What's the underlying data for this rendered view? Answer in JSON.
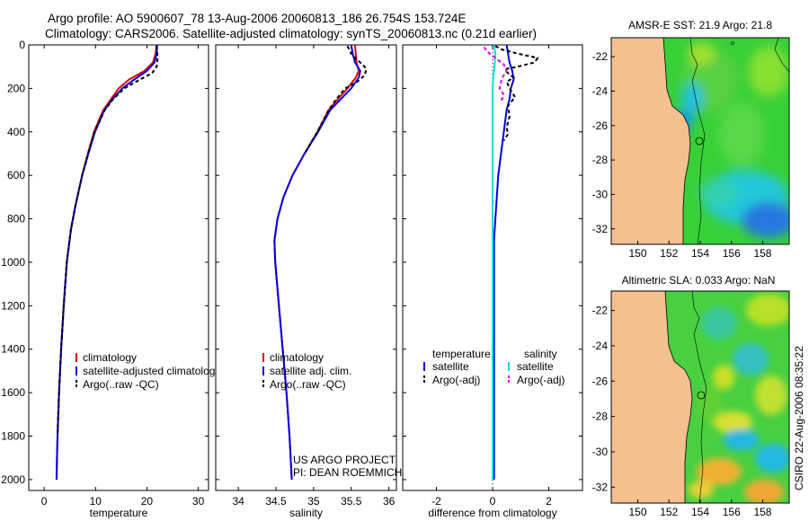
{
  "title_line1": "Argo profile: AO 5900607_78 13-Aug-2006 20060813_186 26.754S 153.724E",
  "title_line2": "Climatology: CARS2006. Satellite-adjusted climatology: synTS_20060813.nc (0.21d earlier)",
  "credit": "CSIRO 22-Aug-2006 08:35:22",
  "project_line1": "US ARGO PROJECT",
  "project_line2": "PI: DEAN ROEMMICH",
  "colors": {
    "climatology": "#e00000",
    "satellite": "#0000e0",
    "argo": "#000000",
    "sat_diff_s": "#00e0e0",
    "argo_diff_s": "#e000e0",
    "land": "#f4c090"
  },
  "chart_data": [
    {
      "type": "line",
      "id": "temp",
      "xlabel": "temperature",
      "xlim": [
        -3,
        32
      ],
      "ylim": [
        0,
        2050
      ],
      "xticks": [
        0,
        10,
        20,
        30
      ],
      "yticks": [
        0,
        200,
        400,
        600,
        800,
        1000,
        1200,
        1400,
        1600,
        1800,
        2000
      ],
      "legend": [
        "climatology",
        "satellite-adjusted climatology",
        "Argo(..raw -QC)"
      ],
      "series": [
        {
          "name": "climatology",
          "color": "#e00000",
          "dash": "",
          "x": [
            21.9,
            21.7,
            21.2,
            19.5,
            16.5,
            14.5,
            13.0,
            11.5,
            9.7,
            8.5,
            7.4,
            6.0,
            5.2,
            4.4,
            3.8,
            3.3,
            2.9,
            2.6,
            2.5,
            2.4
          ],
          "y": [
            0,
            40,
            80,
            120,
            160,
            200,
            250,
            300,
            400,
            500,
            600,
            750,
            850,
            1000,
            1200,
            1400,
            1600,
            1800,
            1900,
            2000
          ]
        },
        {
          "name": "satellite-adjusted climatology",
          "color": "#0000e0",
          "dash": "",
          "x": [
            22.0,
            21.9,
            21.5,
            20.0,
            17.5,
            15.2,
            13.3,
            11.7,
            9.9,
            8.6,
            7.4,
            6.0,
            5.2,
            4.4,
            3.8,
            3.3,
            2.9,
            2.6,
            2.5,
            2.4
          ],
          "y": [
            0,
            40,
            80,
            120,
            160,
            200,
            250,
            300,
            400,
            500,
            600,
            750,
            850,
            1000,
            1200,
            1400,
            1600,
            1800,
            1900,
            2000
          ]
        },
        {
          "name": "Argo(..raw -QC)",
          "color": "#000000",
          "dash": "4,3",
          "x": [
            21.8,
            22.0,
            22.1,
            21.9,
            21.0,
            18.6,
            15.6,
            13.4,
            11.8,
            9.8,
            8.6,
            7.4,
            6.0,
            5.2,
            4.4,
            3.8,
            3.3,
            2.9,
            2.6
          ],
          "y": [
            5,
            30,
            60,
            100,
            130,
            160,
            200,
            250,
            300,
            400,
            500,
            600,
            750,
            850,
            1000,
            1200,
            1400,
            1600,
            1800
          ]
        }
      ]
    },
    {
      "type": "line",
      "id": "sal",
      "xlabel": "salinity",
      "xlim": [
        33.7,
        36.1
      ],
      "ylim": [
        0,
        2050
      ],
      "xticks": [
        34,
        34.5,
        35,
        35.5,
        36
      ],
      "yticks": [
        0,
        200,
        400,
        600,
        800,
        1000,
        1200,
        1400,
        1600,
        1800,
        2000
      ],
      "legend": [
        "climatology",
        "satellite adj. clim.",
        "Argo(..raw -QC)"
      ],
      "series": [
        {
          "name": "climatology",
          "color": "#e00000",
          "dash": "",
          "x": [
            35.55,
            35.56,
            35.57,
            35.6,
            35.56,
            35.45,
            35.32,
            35.2,
            35.05,
            34.88,
            34.72,
            34.6,
            34.52,
            34.48,
            34.49,
            34.54,
            34.59,
            34.64,
            34.68,
            34.71
          ],
          "y": [
            0,
            40,
            80,
            120,
            150,
            200,
            250,
            300,
            400,
            500,
            600,
            700,
            800,
            900,
            1000,
            1200,
            1400,
            1600,
            1800,
            2000
          ]
        },
        {
          "name": "satellite adj. clim.",
          "color": "#0000e0",
          "dash": "",
          "x": [
            35.5,
            35.52,
            35.55,
            35.62,
            35.6,
            35.5,
            35.36,
            35.22,
            35.06,
            34.88,
            34.72,
            34.6,
            34.52,
            34.48,
            34.49,
            34.54,
            34.59,
            34.64,
            34.68,
            34.71
          ],
          "y": [
            0,
            40,
            80,
            120,
            150,
            200,
            250,
            300,
            400,
            500,
            600,
            700,
            800,
            900,
            1000,
            1200,
            1400,
            1600,
            1800,
            2000
          ]
        },
        {
          "name": "Argo(..raw -QC)",
          "color": "#000000",
          "dash": "4,3",
          "x": [
            35.45,
            35.5,
            35.55,
            35.65,
            35.7,
            35.68,
            35.58,
            35.42,
            35.3,
            35.2,
            35.05,
            34.88
          ],
          "y": [
            5,
            40,
            60,
            90,
            110,
            140,
            170,
            200,
            250,
            300,
            400,
            500
          ]
        }
      ]
    },
    {
      "type": "line",
      "id": "diff",
      "xlabel": "difference from climatology",
      "xlim": [
        -3.2,
        3.2
      ],
      "ylim": [
        0,
        2050
      ],
      "xticks": [
        -2,
        0,
        2
      ],
      "yticks": [
        0,
        200,
        400,
        600,
        800,
        1000,
        1200,
        1400,
        1600,
        1800,
        2000
      ],
      "legend_headers": [
        "temperature",
        "salinity"
      ],
      "legend": [
        "satellite",
        "Argo(-adj)",
        "satellite",
        "Argo(-adj)"
      ],
      "series": [
        {
          "name": "temperature satellite",
          "color": "#0000e0",
          "dash": "",
          "x": [
            0.5,
            0.55,
            0.6,
            0.7,
            0.75,
            0.65,
            0.6,
            0.5,
            0.4,
            0.3,
            0.2,
            0.15,
            0.1,
            0.05,
            0.05,
            0.05,
            0.05,
            0.05,
            0.05,
            0.05
          ],
          "y": [
            0,
            40,
            80,
            120,
            160,
            200,
            250,
            300,
            400,
            500,
            600,
            700,
            800,
            900,
            1000,
            1200,
            1400,
            1600,
            1800,
            2000
          ]
        },
        {
          "name": "temperature Argo(-adj)",
          "color": "#000000",
          "dash": "4,3",
          "x": [
            0.1,
            0.3,
            0.9,
            1.6,
            1.5,
            0.9,
            0.5,
            0.45,
            0.75,
            0.5,
            0.65,
            0.8,
            0.55,
            0.6,
            0.5,
            0.55,
            0.4
          ],
          "y": [
            5,
            20,
            40,
            60,
            80,
            100,
            110,
            120,
            150,
            170,
            210,
            240,
            280,
            330,
            380,
            410,
            440
          ]
        },
        {
          "name": "salinity satellite",
          "color": "#00e0e0",
          "dash": "",
          "x": [
            0.05,
            0.1,
            0.08,
            0.05,
            0.02,
            0.0,
            0.0,
            0.0,
            0.0,
            0.0,
            0.0,
            0.0,
            0.0,
            0.0
          ],
          "y": [
            0,
            40,
            80,
            120,
            160,
            200,
            300,
            400,
            600,
            800,
            1000,
            1400,
            1800,
            2000
          ]
        },
        {
          "name": "salinity Argo(-adj)",
          "color": "#e000e0",
          "dash": "4,3",
          "x": [
            -0.3,
            -0.2,
            0.1,
            0.4,
            0.5,
            0.35,
            0.3,
            0.25,
            0.4,
            0.3
          ],
          "y": [
            10,
            30,
            60,
            90,
            120,
            150,
            170,
            200,
            230,
            260
          ]
        }
      ]
    }
  ],
  "maps": [
    {
      "title": "AMSR-E SST: 21.9 Argo: 21.8",
      "xticks": [
        150,
        152,
        154,
        156,
        158
      ],
      "yticks": [
        -22,
        -24,
        -26,
        -28,
        -30,
        -32
      ],
      "xlim": [
        148.3,
        159.7
      ],
      "ylim": [
        -32.9,
        -20.9
      ]
    },
    {
      "title": "Altimetric SLA: 0.033 Argo: NaN",
      "xticks": [
        150,
        152,
        154,
        156,
        158
      ],
      "yticks": [
        -22,
        -24,
        -26,
        -28,
        -30,
        -32
      ],
      "xlim": [
        148.3,
        159.7
      ],
      "ylim": [
        -32.9,
        -20.9
      ]
    }
  ]
}
